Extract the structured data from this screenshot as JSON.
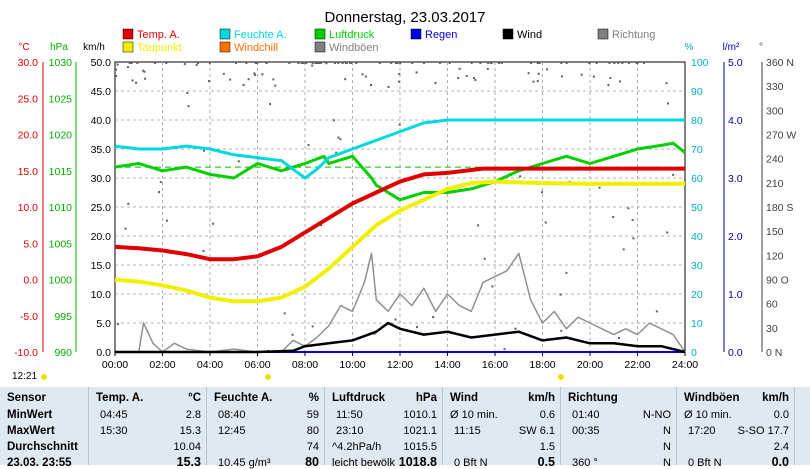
{
  "chart_data": {
    "type": "line",
    "title": "Donnerstag, 23.03.2017",
    "x_ticks": [
      "00:00",
      "02:00",
      "04:00",
      "06:00",
      "08:00",
      "10:00",
      "12:00",
      "14:00",
      "16:00",
      "18:00",
      "20:00",
      "22:00",
      "24:00"
    ],
    "axes": {
      "temp_c": {
        "label": "°C",
        "ticks": [
          "30.0",
          "25.0",
          "20.0",
          "15.0",
          "10.0",
          "5.0",
          "0.0",
          "-5.0",
          "-10.0"
        ],
        "range": [
          -10,
          30
        ],
        "color": "#e00000"
      },
      "pressure_hpa": {
        "label": "hPa",
        "ticks": [
          "1030",
          "1025",
          "1020",
          "1015",
          "1010",
          "1005",
          "1000",
          "995",
          "990"
        ],
        "range": [
          990,
          1030
        ],
        "color": "#00b000"
      },
      "wind_kmh": {
        "label": "km/h",
        "ticks": [
          "50.0",
          "45.0",
          "40.0",
          "35.0",
          "30.0",
          "25.0",
          "20.0",
          "15.0",
          "10.0",
          "5.0",
          "0.0"
        ],
        "range": [
          0,
          50
        ],
        "color": "#000000"
      },
      "humidity_pct": {
        "label": "%",
        "ticks": [
          "100",
          "90",
          "80",
          "70",
          "60",
          "50",
          "40",
          "30",
          "20",
          "10",
          "0"
        ],
        "range": [
          0,
          100
        ],
        "color": "#00b0c0"
      },
      "rain_lm2": {
        "label": "l/m²",
        "ticks": [
          "5.0",
          "4.0",
          "3.0",
          "2.0",
          "1.0",
          "0.0"
        ],
        "range": [
          0,
          5
        ],
        "color": "#0000a0"
      },
      "direction_deg": {
        "label": "°",
        "ticks": [
          "360 N",
          "330",
          "300",
          "270 W",
          "240",
          "210",
          "180 S",
          "150",
          "120",
          "90 O",
          "60",
          "30",
          "0 N"
        ],
        "range": [
          0,
          360
        ],
        "color": "#404040"
      }
    },
    "legend": [
      {
        "name": "Temp. A.",
        "color": "#e00000"
      },
      {
        "name": "Feuchte A.",
        "color": "#00d8e0"
      },
      {
        "name": "Luftdruck",
        "color": "#00d000"
      },
      {
        "name": "Regen",
        "color": "#0000e0"
      },
      {
        "name": "Wind",
        "color": "#000000"
      },
      {
        "name": "Richtung",
        "color": "#808080"
      },
      {
        "name": "Taupunkt",
        "color": "#f0f000"
      },
      {
        "name": "Windchill",
        "color": "#ff7000"
      },
      {
        "name": "Windböen",
        "color": "#808080"
      }
    ],
    "series": [
      {
        "name": "Temp. A.",
        "axis": "temp_c",
        "color": "#e00000",
        "x": [
          0,
          1,
          2,
          3,
          4,
          5,
          6,
          7,
          8,
          9,
          10,
          11,
          12,
          13,
          14,
          15,
          15.5,
          16,
          18,
          20,
          22,
          24
        ],
        "y": [
          4.5,
          4.3,
          4.0,
          3.5,
          2.8,
          2.8,
          3.2,
          4.5,
          6.5,
          8.5,
          10.5,
          12.0,
          13.5,
          14.5,
          14.7,
          15.1,
          15.3,
          15.3,
          15.3,
          15.3,
          15.3,
          15.3
        ]
      },
      {
        "name": "Taupunkt",
        "axis": "temp_c",
        "color": "#f0f000",
        "x": [
          0,
          1,
          2,
          3,
          4,
          5,
          6,
          7,
          8,
          9,
          10,
          11,
          12,
          13,
          14,
          15,
          16,
          18,
          20,
          22,
          24
        ],
        "y": [
          0.0,
          -0.3,
          -0.8,
          -1.5,
          -2.5,
          -3.0,
          -3.0,
          -2.5,
          -1.0,
          1.5,
          4.5,
          7.5,
          9.5,
          11.0,
          12.5,
          13.3,
          13.5,
          13.3,
          13.2,
          13.2,
          13.2
        ]
      },
      {
        "name": "Feuchte A.",
        "axis": "humidity_pct",
        "color": "#00d8e0",
        "x": [
          0,
          1,
          2,
          3,
          4,
          5,
          6,
          7,
          7.5,
          8,
          8.5,
          9,
          10,
          11,
          12,
          13,
          14,
          15,
          16,
          18,
          20,
          22,
          24
        ],
        "y": [
          71,
          70,
          70,
          71,
          70,
          68,
          67,
          66,
          63,
          60,
          63,
          67,
          70,
          73,
          76,
          79,
          80,
          80,
          80,
          80,
          80,
          80,
          80
        ]
      },
      {
        "name": "Luftdruck",
        "axis": "pressure_hpa",
        "color": "#00d000",
        "x": [
          0,
          1,
          2,
          3,
          4,
          5,
          6,
          7,
          8,
          8.8,
          9,
          10,
          10.8,
          11,
          12,
          13,
          14,
          15,
          16,
          17,
          18,
          19,
          20,
          21,
          22,
          23,
          23.5,
          24
        ],
        "y": [
          1015.5,
          1016.0,
          1015.0,
          1015.5,
          1014.5,
          1014.0,
          1016.0,
          1015.0,
          1016.0,
          1017.0,
          1016.0,
          1017.0,
          1014.0,
          1013.0,
          1011.0,
          1012.0,
          1012.0,
          1012.5,
          1013.5,
          1015.0,
          1016.0,
          1017.0,
          1016.0,
          1017.0,
          1018.0,
          1018.5,
          1018.8,
          1017.5
        ]
      },
      {
        "name": "Wind",
        "axis": "wind_kmh",
        "color": "#000000",
        "x": [
          0,
          2,
          4,
          6,
          7.5,
          8,
          9,
          10,
          11,
          11.5,
          12,
          13,
          14,
          15,
          16,
          17,
          18,
          19,
          20,
          21,
          22,
          23,
          24
        ],
        "y": [
          0,
          0,
          0,
          0,
          0.2,
          1,
          1.5,
          2,
          3.5,
          5,
          4,
          3,
          3.5,
          2.5,
          3,
          3.5,
          2,
          2.5,
          1.5,
          1.5,
          1,
          1,
          0
        ]
      },
      {
        "name": "Windböen",
        "axis": "wind_kmh",
        "color": "#909090",
        "x": [
          0,
          1,
          1.2,
          1.6,
          2,
          2.5,
          3,
          4,
          5,
          6,
          7,
          7.5,
          8,
          8.5,
          9,
          9.5,
          10,
          10.5,
          10.8,
          11,
          11.5,
          12,
          12.5,
          13,
          13.5,
          14,
          14.5,
          15,
          15.5,
          16,
          16.5,
          17,
          17.5,
          18,
          18.5,
          19,
          19.5,
          20,
          20.5,
          21,
          21.5,
          22,
          22.5,
          23,
          23.5,
          24
        ],
        "y": [
          0,
          0,
          5,
          1.5,
          0,
          1.5,
          0.5,
          0,
          0.5,
          0,
          0,
          2,
          1,
          2.5,
          4.5,
          8,
          7,
          12,
          17,
          9,
          7,
          10,
          8,
          11,
          7,
          10,
          8,
          7,
          12,
          13,
          14,
          17,
          9,
          5,
          7,
          4,
          6,
          5,
          4,
          3,
          4,
          3,
          5,
          4,
          3,
          0
        ]
      },
      {
        "name": "Regen",
        "axis": "rain_lm2",
        "color": "#0000e0",
        "x": [
          0,
          24
        ],
        "y": [
          0,
          0
        ]
      }
    ]
  },
  "now_time": "12:21",
  "stats": {
    "headers": {
      "sensor": "Sensor",
      "temp": "Temp. A.",
      "temp_unit": "°C",
      "hum": "Feuchte A.",
      "hum_unit": "%",
      "press": "Luftdruck",
      "press_unit": "hPa",
      "wind": "Wind",
      "wind_unit": "km/h",
      "dir": "Richtung",
      "gust": "Windböen",
      "gust_unit": "km/h"
    },
    "rows": {
      "min": {
        "label": "MinWert",
        "temp_time": "04:45",
        "temp": "2.8",
        "hum_time": "08:40",
        "hum": "59",
        "press_time": "11:50",
        "press": "1010.1",
        "wind_label": "Ø 10 min.",
        "wind": "0.6",
        "dir_time": "01:40",
        "dir": "N-NO",
        "gust_label": "Ø 10 min.",
        "gust": "0.0"
      },
      "max": {
        "label": "MaxWert",
        "temp_time": "15:30",
        "temp": "15.3",
        "hum_time": "12:45",
        "hum": "80",
        "press_time": "23:10",
        "press": "1021.1",
        "wind_label": "11:15",
        "wind": "SW 6.1",
        "dir_time": "00:35",
        "dir": "N",
        "gust_label": "17:20",
        "gust": "S-SO 17.7"
      },
      "avg": {
        "label": "Durchschnitt",
        "temp": "10.04",
        "hum": "74",
        "press_time": "^4.2hPa/h",
        "press": "1015.5",
        "wind": "1.5",
        "dir": "N",
        "gust": "2.4"
      },
      "cur": {
        "label": "23.03. 23:55",
        "temp": "15.3",
        "hum_time": "10.45 g/m³",
        "hum": "80",
        "press_time": "leicht bewölk",
        "press": "1018.8",
        "wind_label": "0 Bft N",
        "wind": "0.5",
        "dir_time": "360 °",
        "dir": "N",
        "gust_label": "0 Bft N",
        "gust": "0.0"
      }
    }
  }
}
